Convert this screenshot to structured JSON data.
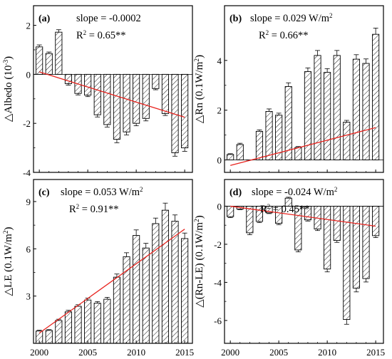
{
  "colors": {
    "bar_stroke": "#000000",
    "trend": "#e8231e",
    "hatch": "#000000",
    "background": "#ffffff"
  },
  "chart_data": [
    {
      "type": "bar",
      "panel": "(a)",
      "annotation_slope": "slope = -0.0002",
      "annotation_r2": "R",
      "r2_value": " = 0.65**",
      "ylabel": "△Albedo (10",
      "ylabel_exp": "-3",
      "ylabel_tail": ")",
      "ylim": [
        -4,
        2.8
      ],
      "yticks": [
        -4,
        -2,
        0,
        2
      ],
      "ytick_labels": [
        "-4",
        "-2",
        "0",
        "2"
      ],
      "x": [
        2000,
        2001,
        2002,
        2003,
        2004,
        2005,
        2006,
        2007,
        2008,
        2009,
        2010,
        2011,
        2012,
        2013,
        2014,
        2015
      ],
      "values": [
        1.12,
        0.85,
        1.72,
        -0.38,
        -0.78,
        -0.85,
        -1.65,
        -2.05,
        -2.65,
        -2.35,
        -2.0,
        -1.8,
        -0.58,
        -1.6,
        -3.2,
        -3.0
      ],
      "errors": [
        0.08,
        0.06,
        0.1,
        0.06,
        0.06,
        0.06,
        0.09,
        0.1,
        0.14,
        0.12,
        0.1,
        0.1,
        0.05,
        0.08,
        0.14,
        0.14
      ],
      "trend": {
        "x": [
          2000,
          2015
        ],
        "y": [
          0.1,
          -1.75
        ]
      }
    },
    {
      "type": "bar",
      "panel": "(b)",
      "annotation_slope": "slope = 0.029 W/m",
      "slope_exp": "2",
      "annotation_r2": "R",
      "r2_value": " = 0.66**",
      "ylabel": "△Rn (0.1W/m",
      "ylabel_exp": "2",
      "ylabel_tail": ")",
      "ylim": [
        -0.5,
        6.2
      ],
      "yticks": [
        0,
        2,
        4
      ],
      "ytick_labels": [
        "0",
        "2",
        "4"
      ],
      "x": [
        2000,
        2001,
        2002,
        2003,
        2004,
        2005,
        2006,
        2007,
        2008,
        2009,
        2010,
        2011,
        2012,
        2013,
        2014,
        2015
      ],
      "values": [
        0.22,
        0.62,
        0.0,
        1.15,
        1.95,
        1.8,
        2.95,
        0.5,
        3.55,
        4.2,
        3.52,
        4.2,
        1.52,
        4.05,
        3.88,
        5.05
      ],
      "errors": [
        0.03,
        0.05,
        0.0,
        0.06,
        0.1,
        0.08,
        0.15,
        0.04,
        0.15,
        0.2,
        0.15,
        0.2,
        0.07,
        0.18,
        0.18,
        0.25
      ],
      "trend": {
        "x": [
          2000,
          2015
        ],
        "y": [
          -0.22,
          1.3
        ]
      }
    },
    {
      "type": "bar",
      "panel": "(c)",
      "annotation_slope": "slope = 0.053 W/m",
      "slope_exp": "2",
      "annotation_r2": "R",
      "r2_value": " = 0.91**",
      "ylabel": "△LE (0.1W/m",
      "ylabel_exp": "2",
      "ylabel_tail": ")",
      "ylim": [
        0,
        10.4
      ],
      "yticks": [
        3,
        6,
        9
      ],
      "ytick_labels": [
        "3",
        "6",
        "9"
      ],
      "x": [
        2000,
        2001,
        2002,
        2003,
        2004,
        2005,
        2006,
        2007,
        2008,
        2009,
        2010,
        2011,
        2012,
        2013,
        2014,
        2015
      ],
      "values": [
        0.78,
        0.82,
        1.45,
        2.0,
        2.35,
        2.75,
        2.55,
        2.8,
        4.2,
        5.5,
        6.85,
        6.05,
        7.6,
        8.45,
        7.75,
        6.65
      ],
      "errors": [
        0.05,
        0.05,
        0.08,
        0.1,
        0.1,
        0.12,
        0.1,
        0.12,
        0.2,
        0.25,
        0.35,
        0.3,
        0.35,
        0.45,
        0.4,
        0.35
      ],
      "trend": {
        "x": [
          2000,
          2015
        ],
        "y": [
          0.65,
          7.25
        ]
      }
    },
    {
      "type": "bar",
      "panel": "(d)",
      "annotation_slope": "slope = -0.024 W/m",
      "slope_exp": "2",
      "annotation_r2": "R",
      "r2_value": " = 0.45**",
      "ylabel": "△(Rn-LE) (0.1W/m",
      "ylabel_exp": "2",
      "ylabel_tail": ")",
      "xlabel_ticks": [
        "2000",
        "2005",
        "2010",
        "2015"
      ],
      "ylim": [
        -7.2,
        1.4
      ],
      "yticks": [
        -6,
        -4,
        -2,
        0
      ],
      "ytick_labels": [
        "-6",
        "-4",
        "-2",
        "0"
      ],
      "x": [
        2000,
        2001,
        2002,
        2003,
        2004,
        2005,
        2006,
        2007,
        2008,
        2009,
        2010,
        2011,
        2012,
        2013,
        2014,
        2015
      ],
      "values": [
        -0.55,
        -0.15,
        -1.4,
        -0.8,
        -0.35,
        -0.9,
        0.42,
        -2.3,
        -0.72,
        -1.2,
        -3.3,
        -1.8,
        -5.95,
        -4.3,
        -3.8,
        -1.55
      ],
      "errors": [
        0.05,
        0.03,
        0.1,
        0.06,
        0.04,
        0.07,
        0.05,
        0.1,
        0.06,
        0.08,
        0.15,
        0.1,
        0.25,
        0.2,
        0.18,
        0.1
      ],
      "trend": {
        "x": [
          2000,
          2015
        ],
        "y": [
          0.0,
          -1.05
        ]
      }
    }
  ],
  "shared_x_tick_labels": [
    "2000",
    "2005",
    "2010",
    "2015"
  ]
}
